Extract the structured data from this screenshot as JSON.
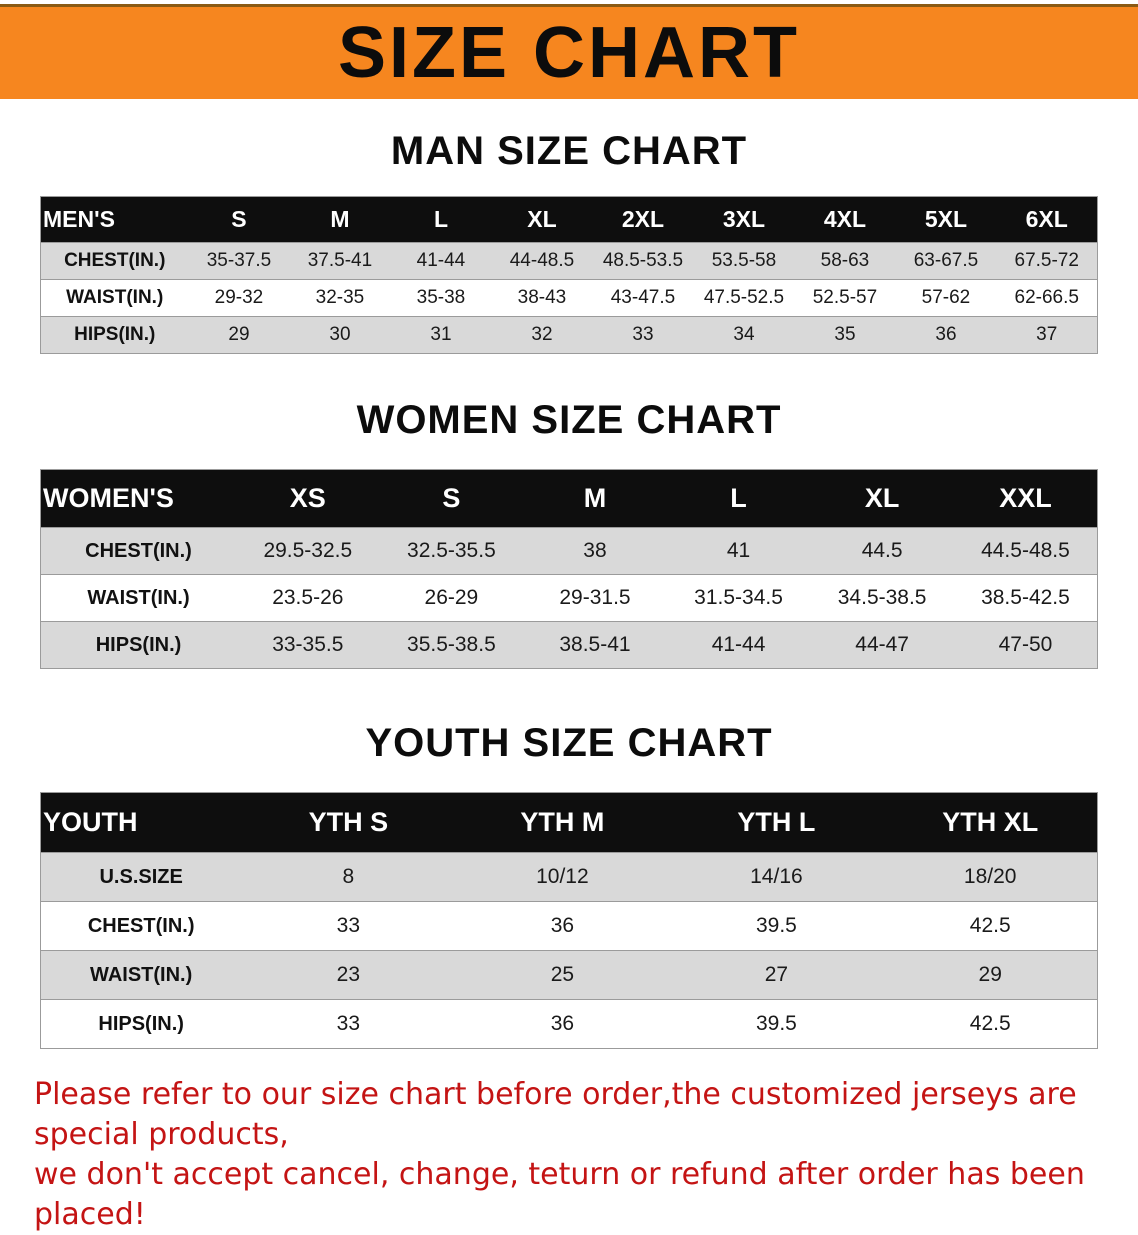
{
  "banner": {
    "title": "SIZE CHART"
  },
  "colors": {
    "banner_bg": "#f6861f",
    "header_bg": "#0e0e0e",
    "row_alt": "#d9d9d9",
    "notice_red": "#c41414"
  },
  "sections": [
    {
      "heading": "MAN SIZE CHART",
      "table": {
        "header": [
          "MEN'S",
          "S",
          "M",
          "L",
          "XL",
          "2XL",
          "3XL",
          "4XL",
          "5XL",
          "6XL"
        ],
        "rows": [
          [
            "CHEST(IN.)",
            "35-37.5",
            "37.5-41",
            "41-44",
            "44-48.5",
            "48.5-53.5",
            "53.5-58",
            "58-63",
            "63-67.5",
            "67.5-72"
          ],
          [
            "WAIST(IN.)",
            "29-32",
            "32-35",
            "35-38",
            "38-43",
            "43-47.5",
            "47.5-52.5",
            "52.5-57",
            "57-62",
            "62-66.5"
          ],
          [
            "HIPS(IN.)",
            "29",
            "30",
            "31",
            "32",
            "33",
            "34",
            "35",
            "36",
            "37"
          ]
        ]
      }
    },
    {
      "heading": "WOMEN SIZE CHART",
      "table": {
        "header": [
          "WOMEN'S",
          "XS",
          "S",
          "M",
          "L",
          "XL",
          "XXL"
        ],
        "rows": [
          [
            "CHEST(IN.)",
            "29.5-32.5",
            "32.5-35.5",
            "38",
            "41",
            "44.5",
            "44.5-48.5"
          ],
          [
            "WAIST(IN.)",
            "23.5-26",
            "26-29",
            "29-31.5",
            "31.5-34.5",
            "34.5-38.5",
            "38.5-42.5"
          ],
          [
            "HIPS(IN.)",
            "33-35.5",
            "35.5-38.5",
            "38.5-41",
            "41-44",
            "44-47",
            "47-50"
          ]
        ]
      }
    },
    {
      "heading": "YOUTH SIZE CHART",
      "table": {
        "header": [
          "YOUTH",
          "YTH S",
          "YTH M",
          "YTH L",
          "YTH XL"
        ],
        "rows": [
          [
            "U.S.SIZE",
            "8",
            "10/12",
            "14/16",
            "18/20"
          ],
          [
            "CHEST(IN.)",
            "33",
            "36",
            "39.5",
            "42.5"
          ],
          [
            "WAIST(IN.)",
            "23",
            "25",
            "27",
            "29"
          ],
          [
            "HIPS(IN.)",
            "33",
            "36",
            "39.5",
            "42.5"
          ]
        ]
      }
    }
  ],
  "notice": {
    "line1": "Please refer to our size chart before order,the customized jerseys are special products,",
    "line2": "we don't accept cancel, change, teturn or refund after order has been placed!"
  }
}
